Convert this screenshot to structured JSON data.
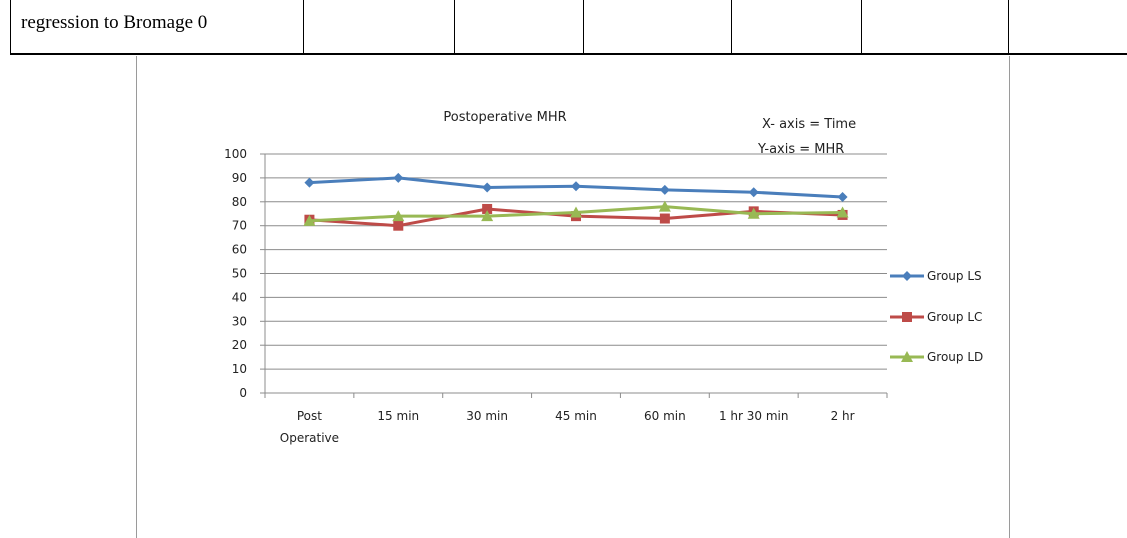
{
  "table_row": {
    "label": "regression to Bromage 0"
  },
  "annotations": {
    "x_axis_note": "X- axis = Time",
    "y_axis_note": "Y-axis = MHR"
  },
  "chart_data": {
    "type": "line",
    "title": "Postoperative MHR",
    "xlabel": "",
    "ylabel": "",
    "categories": [
      "Post Operative",
      "15 min",
      "30 min",
      "45 min",
      "60 min",
      "1 hr 30 min",
      "2 hr"
    ],
    "ylim": [
      0,
      100
    ],
    "yticks": [
      0,
      10,
      20,
      30,
      40,
      50,
      60,
      70,
      80,
      90,
      100
    ],
    "grid": true,
    "legend_position": "right",
    "series": [
      {
        "name": "Group LS",
        "color": "#4a7ebb",
        "marker": "diamond",
        "values": [
          88,
          90,
          86,
          86.5,
          85,
          84,
          82
        ]
      },
      {
        "name": "Group LC",
        "color": "#be4b48",
        "marker": "square",
        "values": [
          72.5,
          70,
          77,
          74,
          73,
          76,
          74.5
        ]
      },
      {
        "name": "Group LD",
        "color": "#98b954",
        "marker": "triangle",
        "values": [
          72,
          74,
          74,
          75.5,
          78,
          75,
          75.5
        ]
      }
    ]
  }
}
